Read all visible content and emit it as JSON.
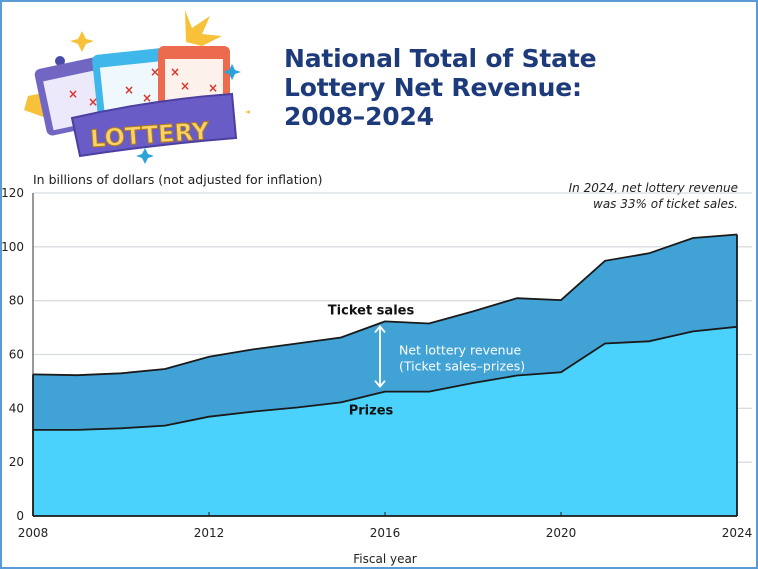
{
  "header": {
    "title_lines": [
      "National Total of State",
      "Lottery Net Revenue:",
      "2008–2024"
    ],
    "logo_text": "LOTTERY"
  },
  "unit_label": "In billions of dollars (not adjusted for inflation)",
  "annotation_lines": [
    "In 2024, net lottery revenue",
    "was 33% of ticket sales."
  ],
  "colors": {
    "ticket_sales_fill": "#41a2d6",
    "prizes_fill": "#4ad2fc",
    "line": "#1a1a1a",
    "grid": "#d8dde2",
    "title": "#1d3a7a"
  },
  "chart_data": {
    "type": "area",
    "title": "National Total of State Lottery Net Revenue: 2008–2024",
    "xlabel": "Fiscal year",
    "ylabel": "In billions of dollars (not adjusted for inflation)",
    "x": [
      2008,
      2009,
      2010,
      2011,
      2012,
      2013,
      2014,
      2015,
      2016,
      2017,
      2018,
      2019,
      2020,
      2021,
      2022,
      2023,
      2024
    ],
    "series": [
      {
        "name": "Ticket sales",
        "values": [
          52.6,
          52.3,
          53.0,
          54.6,
          59.2,
          61.9,
          64.1,
          66.3,
          72.3,
          71.5,
          76.0,
          80.9,
          80.2,
          94.8,
          97.6,
          103.3,
          104.6
        ]
      },
      {
        "name": "Prizes",
        "values": [
          32.0,
          32.0,
          32.6,
          33.6,
          36.9,
          38.8,
          40.3,
          42.2,
          46.2,
          46.2,
          49.4,
          52.2,
          53.4,
          64.1,
          64.9,
          68.6,
          70.3
        ]
      }
    ],
    "xlim": [
      2008,
      2024
    ],
    "ylim": [
      0,
      120
    ],
    "x_ticks": [
      2008,
      2012,
      2016,
      2020,
      2024
    ],
    "x_tick_labels": [
      "2008",
      "2012",
      "2016",
      "2020",
      "2024"
    ],
    "y_ticks": [
      0,
      20,
      40,
      60,
      80,
      100,
      120
    ],
    "y_tick_labels": [
      "0",
      "20",
      "40",
      "60",
      "80",
      "100",
      "120"
    ],
    "grid": true,
    "legend": "inline labels",
    "annotations": {
      "ticket_sales_label": "Ticket sales",
      "prizes_label": "Prizes",
      "net_revenue_label_lines": [
        "Net lottery revenue",
        "(Ticket sales–prizes)"
      ],
      "arrow_year": 2016,
      "note": "In 2024, net lottery revenue was 33% of ticket sales."
    }
  }
}
